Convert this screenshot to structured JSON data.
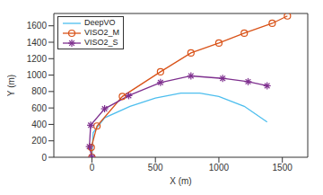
{
  "chart_data": {
    "type": "line",
    "xlabel": "X (m)",
    "ylabel": "Y (m)",
    "xlim": [
      -300,
      1700
    ],
    "xticks": [
      0,
      500,
      1000,
      1500
    ],
    "ylim": [
      0,
      1750
    ],
    "yticks": [
      0,
      200,
      400,
      600,
      800,
      1000,
      1200,
      1400,
      1600
    ],
    "grid": false,
    "legend": "upper left",
    "series": [
      {
        "name": "DeepVO",
        "color": "#4dbeee",
        "marker": "none",
        "line_style": "solid",
        "x": [
          0,
          10,
          100,
          300,
          500,
          700,
          850,
          1000,
          1200,
          1380
        ],
        "values": [
          0,
          300,
          480,
          620,
          720,
          780,
          780,
          740,
          620,
          430
        ]
      },
      {
        "name": "VISO2_M",
        "color": "#d95319",
        "marker": "circle",
        "line_style": "solid",
        "x": [
          0,
          -5,
          40,
          240,
          540,
          780,
          1000,
          1200,
          1420,
          1540
        ],
        "values": [
          0,
          120,
          380,
          740,
          1040,
          1270,
          1390,
          1510,
          1630,
          1720
        ]
      },
      {
        "name": "VISO2_S",
        "color": "#7e2f8e",
        "marker": "star",
        "line_style": "solid",
        "x": [
          0,
          -20,
          -10,
          100,
          290,
          540,
          780,
          1030,
          1230,
          1380
        ],
        "values": [
          0,
          130,
          390,
          590,
          750,
          910,
          990,
          960,
          920,
          870
        ]
      }
    ]
  }
}
